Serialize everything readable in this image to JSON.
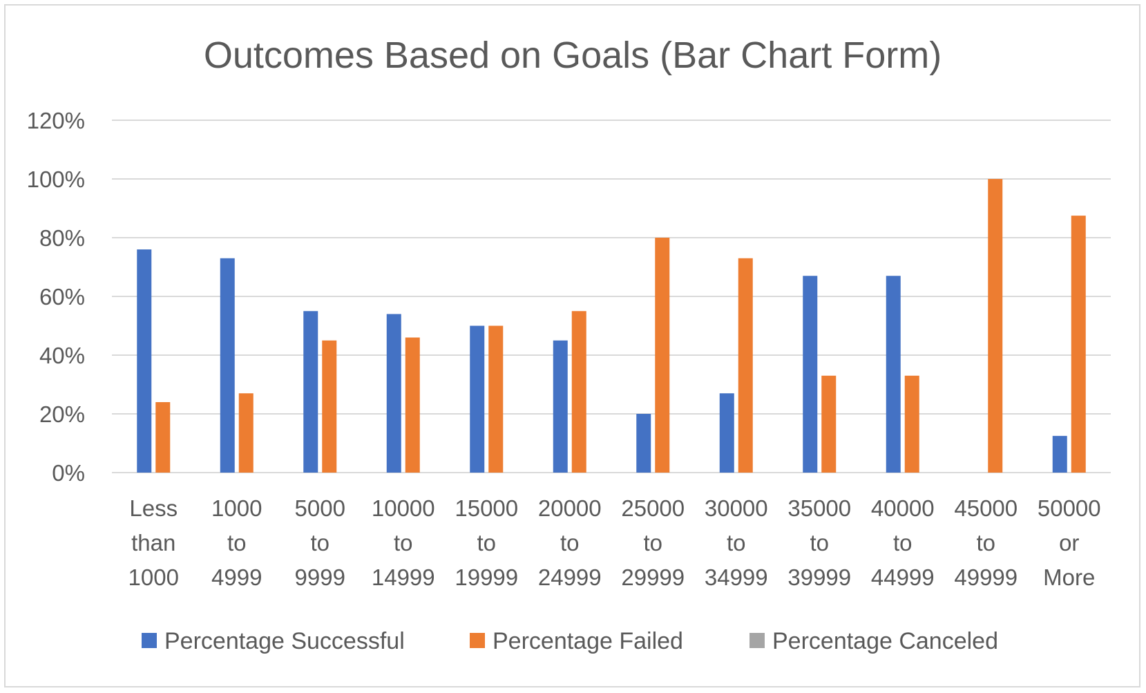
{
  "chart_data": {
    "type": "bar",
    "title": "Outcomes Based on Goals (Bar Chart Form)",
    "xlabel": "",
    "ylabel": "",
    "ylim": [
      0,
      120
    ],
    "y_ticks": [
      "0%",
      "20%",
      "40%",
      "60%",
      "80%",
      "100%",
      "120%"
    ],
    "y_tick_values": [
      0,
      20,
      40,
      60,
      80,
      100,
      120
    ],
    "grid": true,
    "legend_position": "bottom",
    "categories": [
      [
        "Less",
        "than",
        "1000"
      ],
      [
        "1000",
        "to",
        "4999"
      ],
      [
        "5000",
        "to",
        "9999"
      ],
      [
        "10000",
        "to",
        "14999"
      ],
      [
        "15000",
        "to",
        "19999"
      ],
      [
        "20000",
        "to",
        "24999"
      ],
      [
        "25000",
        "to",
        "29999"
      ],
      [
        "30000",
        "to",
        "34999"
      ],
      [
        "35000",
        "to",
        "39999"
      ],
      [
        "40000",
        "to",
        "44999"
      ],
      [
        "45000",
        "to",
        "49999"
      ],
      [
        "50000",
        "or",
        "More"
      ]
    ],
    "series": [
      {
        "name": "Percentage Successful",
        "color": "#4472c4",
        "values": [
          76,
          73,
          55,
          54,
          50,
          45,
          20,
          27,
          67,
          67,
          0,
          12.5
        ]
      },
      {
        "name": "Percentage Failed",
        "color": "#ed7d31",
        "values": [
          24,
          27,
          45,
          46,
          50,
          55,
          80,
          73,
          33,
          33,
          100,
          87.5
        ]
      },
      {
        "name": "Percentage Canceled",
        "color": "#a5a5a5",
        "values": [
          0,
          0,
          0,
          0,
          0,
          0,
          0,
          0,
          0,
          0,
          0,
          0
        ]
      }
    ]
  }
}
